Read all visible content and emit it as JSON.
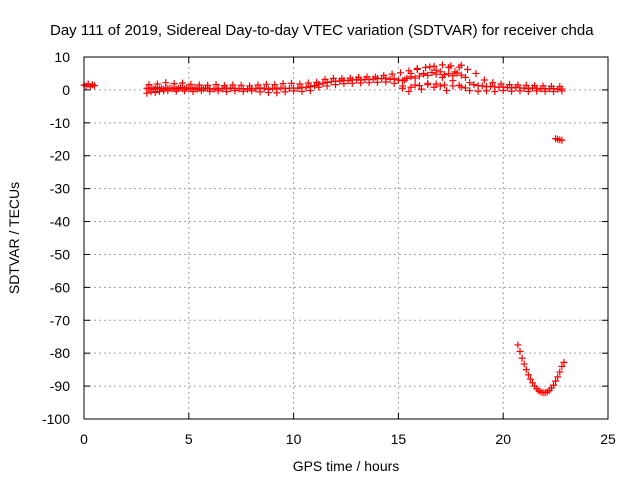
{
  "chart_data": {
    "type": "scatter",
    "title": "Day 111 of 2019, Sidereal Day-to-day VTEC variation (SDTVAR) for receiver chda",
    "xlabel": "GPS time / hours",
    "ylabel": "SDTVAR / TECUs",
    "xlim": [
      0,
      25
    ],
    "ylim": [
      -100,
      10
    ],
    "xticks": [
      0,
      5,
      10,
      15,
      20,
      25
    ],
    "yticks": [
      10,
      0,
      -10,
      -20,
      -30,
      -40,
      -50,
      -60,
      -70,
      -80,
      -90,
      -100
    ],
    "grid": true,
    "marker": "+",
    "color": "#ff0000",
    "series": [
      {
        "name": "SDTVAR",
        "x": [
          0.0,
          0.1,
          0.2,
          0.3,
          0.4,
          0.5,
          3.0,
          3.1,
          3.2,
          3.3,
          3.4,
          3.5,
          3.6,
          3.7,
          3.8,
          3.9,
          4.0,
          4.1,
          4.2,
          4.3,
          4.4,
          4.5,
          4.6,
          4.7,
          4.8,
          4.9,
          5.0,
          5.1,
          5.2,
          5.3,
          5.4,
          5.5,
          5.6,
          5.7,
          5.8,
          5.9,
          6.0,
          6.2,
          6.4,
          6.6,
          6.8,
          7.0,
          7.2,
          7.4,
          7.6,
          7.8,
          8.0,
          8.2,
          8.4,
          8.6,
          8.8,
          9.0,
          9.2,
          9.4,
          9.6,
          9.8,
          10.0,
          10.2,
          10.4,
          10.6,
          10.8,
          11.0,
          11.2,
          11.4,
          11.6,
          11.8,
          12.0,
          12.2,
          12.4,
          12.6,
          12.8,
          13.0,
          13.2,
          13.4,
          13.6,
          13.8,
          14.0,
          14.2,
          14.4,
          14.6,
          14.8,
          15.0,
          15.2,
          15.4,
          15.6,
          15.8,
          16.0,
          16.2,
          16.4,
          16.6,
          16.8,
          17.0,
          17.2,
          17.4,
          17.6,
          17.8,
          18.0,
          18.2,
          18.4,
          18.6,
          18.8,
          19.0,
          19.2,
          19.4,
          19.6,
          19.8,
          20.0,
          20.2,
          20.4,
          20.6,
          20.8,
          21.0,
          21.2,
          21.4,
          21.6,
          21.8,
          22.0,
          22.2,
          22.4,
          22.6,
          22.8,
          3.0,
          3.2,
          3.4,
          3.6,
          3.8,
          4.0,
          4.4,
          4.8,
          5.2,
          5.6,
          6.0,
          6.4,
          6.8,
          7.2,
          7.6,
          8.0,
          8.4,
          8.8,
          9.2,
          9.6,
          10.0,
          10.4,
          10.8,
          11.2,
          11.6,
          12.0,
          12.4,
          12.8,
          13.2,
          13.6,
          14.0,
          14.4,
          14.8,
          15.2,
          15.6,
          16.0,
          16.4,
          16.8,
          17.2,
          17.6,
          18.0,
          18.4,
          18.8,
          19.2,
          19.6,
          20.0,
          20.4,
          20.8,
          21.2,
          21.6,
          22.0,
          22.4,
          22.8,
          3.1,
          3.5,
          3.9,
          4.3,
          4.7,
          5.1,
          5.5,
          5.9,
          6.3,
          6.7,
          7.1,
          7.5,
          7.9,
          8.3,
          8.7,
          9.1,
          9.5,
          9.9,
          10.3,
          10.7,
          11.1,
          11.5,
          11.9,
          12.3,
          12.7,
          13.1,
          13.5,
          13.9,
          14.3,
          14.7,
          15.1,
          15.5,
          15.9,
          16.3,
          16.7,
          17.1,
          17.5,
          17.9,
          18.3,
          18.7,
          19.1,
          19.5,
          19.9,
          20.3,
          20.7,
          21.1,
          21.5,
          21.9,
          22.3,
          22.7,
          15.2,
          15.5,
          15.8,
          16.1,
          16.4,
          16.7,
          17.0,
          17.3,
          17.6,
          17.9,
          18.2,
          15.3,
          15.6,
          15.9,
          16.2,
          16.5,
          16.8,
          17.1,
          17.4,
          17.7,
          18.0,
          22.5,
          22.6,
          22.7,
          22.8,
          20.7,
          20.8,
          20.9,
          21.0,
          21.1,
          21.2,
          21.3,
          21.4,
          21.5,
          21.6,
          21.7,
          21.8,
          21.9,
          22.0,
          22.1,
          22.2,
          22.3,
          22.4,
          22.5,
          22.6,
          22.7,
          22.8,
          22.9
        ],
        "y": [
          1.5,
          1.2,
          1.8,
          1.0,
          1.6,
          1.3,
          0.5,
          0.3,
          0.6,
          0.2,
          0.4,
          0.7,
          0.3,
          0.5,
          0.2,
          0.6,
          0.4,
          0.5,
          0.3,
          0.6,
          0.2,
          0.5,
          0.7,
          0.4,
          0.3,
          0.6,
          0.5,
          0.4,
          0.3,
          0.6,
          0.2,
          0.5,
          0.4,
          0.3,
          0.6,
          0.5,
          0.4,
          0.2,
          0.5,
          0.3,
          0.6,
          0.4,
          0.5,
          0.3,
          0.4,
          0.2,
          0.5,
          0.3,
          0.6,
          0.4,
          0.2,
          0.5,
          0.3,
          0.6,
          0.4,
          0.5,
          0.6,
          0.5,
          0.8,
          0.7,
          1.0,
          1.3,
          1.7,
          2.0,
          2.3,
          2.5,
          2.6,
          2.7,
          2.9,
          2.8,
          3.0,
          3.1,
          3.0,
          3.2,
          3.1,
          3.3,
          3.5,
          3.4,
          3.6,
          3.2,
          3.4,
          3.0,
          2.8,
          3.5,
          4.0,
          3.6,
          4.2,
          5.0,
          4.4,
          5.3,
          4.8,
          5.5,
          4.6,
          4.9,
          4.3,
          5.1,
          4.5,
          3.8,
          2.2,
          1.6,
          1.3,
          1.2,
          1.0,
          1.1,
          0.9,
          0.8,
          0.9,
          0.7,
          0.6,
          0.8,
          0.6,
          0.5,
          0.4,
          0.6,
          0.5,
          0.3,
          0.4,
          0.3,
          0.4,
          0.2,
          0.3,
          -1.0,
          -0.6,
          -0.8,
          -0.5,
          -0.3,
          -0.2,
          -0.4,
          -0.3,
          -0.5,
          -0.2,
          -0.4,
          -0.3,
          -0.5,
          -0.2,
          -0.4,
          -0.3,
          -0.6,
          -0.8,
          -0.9,
          -0.6,
          -0.3,
          -0.5,
          -0.2,
          0.8,
          1.2,
          1.6,
          1.9,
          2.0,
          2.1,
          2.2,
          2.3,
          2.4,
          2.0,
          1.2,
          0.8,
          1.3,
          1.6,
          1.8,
          1.5,
          1.2,
          0.9,
          -0.2,
          -0.4,
          -0.3,
          -0.5,
          -0.2,
          -0.4,
          -0.3,
          -0.5,
          -0.3,
          -0.4,
          -0.5,
          -0.3,
          1.6,
          1.8,
          2.2,
          1.9,
          2.1,
          1.7,
          1.5,
          1.4,
          1.6,
          1.3,
          1.5,
          1.4,
          1.2,
          1.5,
          1.7,
          1.6,
          1.9,
          2.0,
          1.8,
          2.1,
          2.3,
          3.2,
          3.5,
          3.4,
          3.6,
          3.8,
          4.0,
          3.9,
          4.4,
          4.8,
          5.2,
          5.8,
          6.2,
          6.8,
          7.2,
          7.6,
          7.3,
          6.9,
          6.2,
          5.0,
          3.0,
          2.2,
          1.8,
          1.6,
          1.5,
          1.4,
          1.3,
          1.2,
          1.1,
          1.0,
          0.5,
          -0.5,
          1.5,
          0.2,
          2.0,
          0.8,
          1.2,
          -0.2,
          2.8,
          1.4,
          0.6,
          3.0,
          5.0,
          6.5,
          4.8,
          7.0,
          6.0,
          3.8,
          6.8,
          5.5,
          7.5,
          -14.8,
          -15.0,
          -15.2,
          -15.3,
          -77.5,
          -79.5,
          -81.5,
          -83.3,
          -85.0,
          -86.6,
          -87.9,
          -89.0,
          -90.0,
          -90.8,
          -91.4,
          -91.8,
          -92.0,
          -92.0,
          -91.8,
          -91.3,
          -90.6,
          -89.7,
          -88.5,
          -87.2,
          -85.7,
          -84.0,
          -82.8
        ]
      }
    ]
  }
}
